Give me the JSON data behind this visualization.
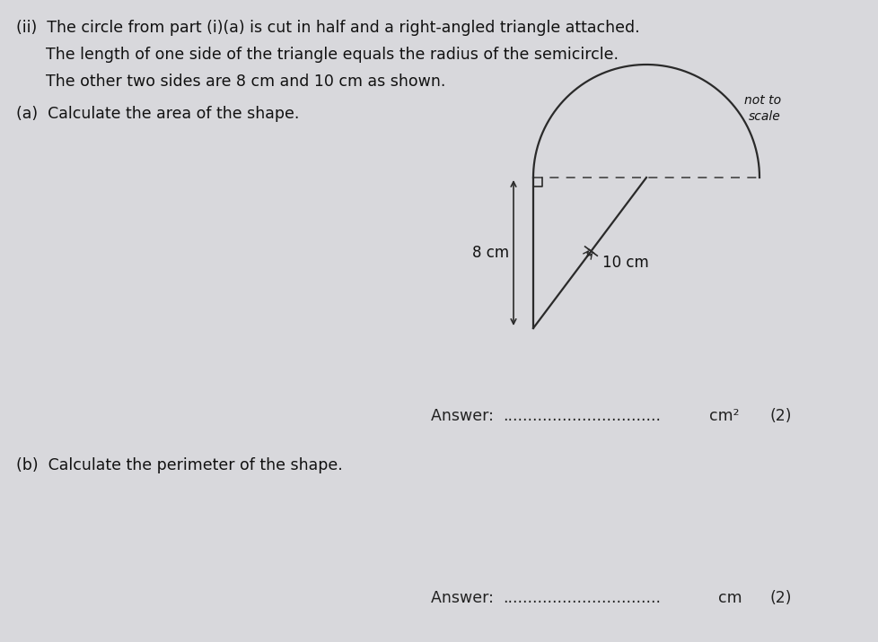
{
  "title_line1": "(ii)  The circle from part (i)(a) is cut in half and a right-angled triangle attached.",
  "title_line2": "      The length of one side of the triangle equals the radius of the semicircle.",
  "title_line3": "      The other two sides are 8 cm and 10 cm as shown.",
  "part_a_label": "(a)  Calculate the area of the shape.",
  "part_b_label": "(b)  Calculate the perimeter of the shape.",
  "answer_a_text": "Answer: ................................ cm²",
  "answer_a_marks": "(2)",
  "answer_b_text": "Answer: ................................ cm",
  "answer_b_marks": "(2)",
  "not_to_scale": "not to\nscale",
  "side_8": "8 cm",
  "side_10": "10 cm",
  "bg_color": "#d8d8dc",
  "shape_color": "#2a2a2a",
  "dashed_color": "#444444",
  "text_color": "#111111",
  "answer_text_color": "#222222",
  "shape_lw": 1.6,
  "dash_lw": 1.2
}
